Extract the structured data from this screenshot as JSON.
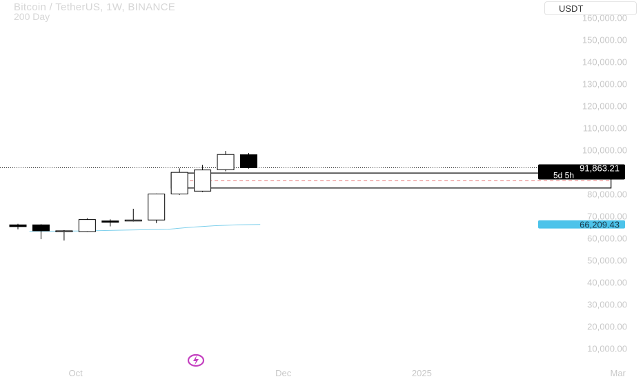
{
  "header": {
    "title": "Bitcoin / TetherUS, 1W, BINANCE",
    "subtitle": "200 Day",
    "currency": "USDT"
  },
  "colors": {
    "candle_up": "#ffffff",
    "candle_down": "#000000",
    "ma_line": "#7fd0ec",
    "price_dotted": "#000000",
    "zone_mid_dashed": "#e57373",
    "ma_label_bg": "#4cc3ea",
    "price_label_bg": "#000000",
    "axis_text": "#c8c8c8"
  },
  "chart_data": {
    "type": "candlestick",
    "title": "Bitcoin / TetherUS, 1W, BINANCE",
    "ylim": [
      5000,
      163000
    ],
    "y_ticks": [
      "160,000.00",
      "150,000.00",
      "140,000.00",
      "130,000.00",
      "120,000.00",
      "110,000.00",
      "100,000.00",
      "80,000.00",
      "70,000.00",
      "60,000.00",
      "50,000.00",
      "40,000.00",
      "30,000.00",
      "20,000.00",
      "10,000.00"
    ],
    "y_tick_values": [
      160000,
      150000,
      140000,
      130000,
      120000,
      110000,
      100000,
      80000,
      70000,
      60000,
      50000,
      40000,
      30000,
      20000,
      10000
    ],
    "x_labels": [
      {
        "label": "Oct",
        "week": 2.5
      },
      {
        "label": "Dec",
        "week": 11.5
      },
      {
        "label": "2025",
        "week": 17.5
      },
      {
        "label": "Mar",
        "week": 26
      }
    ],
    "candles": [
      {
        "week": 0,
        "open": 66000,
        "high": 66500,
        "low": 64000,
        "close": 65200
      },
      {
        "week": 1,
        "open": 66000,
        "high": 66300,
        "low": 59500,
        "close": 63300
      },
      {
        "week": 2,
        "open": 63300,
        "high": 63600,
        "low": 58900,
        "close": 63300
      },
      {
        "week": 3,
        "open": 62900,
        "high": 69000,
        "low": 62700,
        "close": 68400
      },
      {
        "week": 4,
        "open": 67800,
        "high": 68500,
        "low": 65300,
        "close": 67200
      },
      {
        "week": 5,
        "open": 67800,
        "high": 73300,
        "low": 67500,
        "close": 68200
      },
      {
        "week": 6,
        "open": 68200,
        "high": 80200,
        "low": 66800,
        "close": 80000
      },
      {
        "week": 7,
        "open": 80000,
        "high": 91600,
        "low": 79600,
        "close": 89800
      },
      {
        "week": 8,
        "open": 81300,
        "high": 93200,
        "low": 80900,
        "close": 90900
      },
      {
        "week": 9,
        "open": 91000,
        "high": 99500,
        "low": 90300,
        "close": 97900
      },
      {
        "week": 10,
        "open": 97800,
        "high": 98600,
        "low": 91500,
        "close": 91900
      }
    ],
    "moving_average": {
      "name": "200 Day",
      "points": [
        [
          0.5,
          63100
        ],
        [
          2.5,
          63200
        ],
        [
          4.5,
          63600
        ],
        [
          6.5,
          64000
        ],
        [
          7.5,
          64900
        ],
        [
          8.5,
          65600
        ],
        [
          9.5,
          66000
        ],
        [
          10.5,
          66200
        ]
      ]
    },
    "zone": {
      "week_start": 7,
      "week_end": 25.7,
      "top": 89500,
      "bottom": 82700,
      "mid": 86100
    },
    "last_price": {
      "value": 91863.21,
      "label": "91,863.21",
      "countdown": "5d 5h"
    },
    "ma_price": {
      "value": 66209.43,
      "label": "66,209.43"
    }
  }
}
